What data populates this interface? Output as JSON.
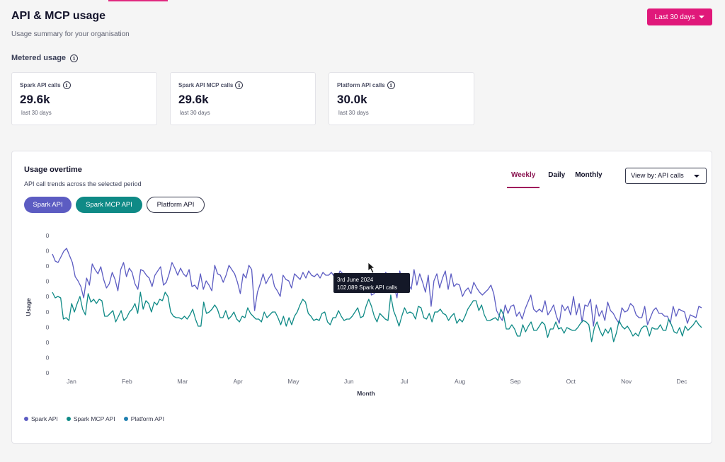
{
  "header": {
    "title": "API & MCP usage",
    "subtitle": "Usage summary for your organisation",
    "period_label": "Last 30 days"
  },
  "metered": {
    "title": "Metered usage",
    "cards": [
      {
        "label": "Spark API calls",
        "value": "29.6k",
        "sub": "last 30 days"
      },
      {
        "label": "Spark API MCP calls",
        "value": "29.6k",
        "sub": "last 30 days"
      },
      {
        "label": "Platform API calls",
        "value": "30.0k",
        "sub": "last 30 days"
      }
    ]
  },
  "usage": {
    "title": "Usage overtime",
    "subtitle": "API call trends across the selected period",
    "tabs": [
      "Weekly",
      "Daily",
      "Monthly"
    ],
    "active_tab": "Weekly",
    "view_by": "View by: API calls",
    "filters": [
      "Spark API",
      "Spark MCP API",
      "Platform API"
    ],
    "tooltip": {
      "date": "3rd June 2024",
      "text": "102,089 Spark API calls"
    }
  },
  "colors": {
    "spark": "#5c5cc2",
    "mcp": "#0f8a86",
    "platform": "#1f7fb0",
    "accent": "#e0187a"
  },
  "chart_data": {
    "type": "line",
    "xlabel": "Month",
    "ylabel": "Usage",
    "x_tick_labels": [
      "Jan",
      "Feb",
      "Mar",
      "Apr",
      "May",
      "Jun",
      "Jul",
      "Aug",
      "Sep",
      "Oct",
      "Nov",
      "Dec"
    ],
    "y_tick_labels": [
      "0",
      "0",
      "0",
      "0",
      "0",
      "0",
      "0",
      "0",
      "0",
      "0"
    ],
    "grid": false,
    "legend": "bottom-left",
    "series": [
      {
        "name": "Spark API",
        "values": [
          0.84,
          0.79,
          0.78,
          0.82,
          0.86,
          0.88,
          0.83,
          0.78,
          0.68,
          0.65,
          0.61,
          0.53,
          0.67,
          0.62,
          0.77,
          0.73,
          0.7,
          0.75,
          0.66,
          0.6,
          0.63,
          0.71,
          0.66,
          0.58,
          0.73,
          0.78,
          0.68,
          0.74,
          0.71,
          0.63,
          0.59,
          0.73,
          0.72,
          0.69,
          0.67,
          0.61,
          0.69,
          0.72,
          0.75,
          0.62,
          0.64,
          0.7,
          0.78,
          0.74,
          0.69,
          0.74,
          0.7,
          0.68,
          0.73,
          0.61,
          0.62,
          0.59,
          0.7,
          0.59,
          0.65,
          0.62,
          0.58,
          0.76,
          0.7,
          0.69,
          0.64,
          0.69,
          0.76,
          0.73,
          0.7,
          0.64,
          0.56,
          0.7,
          0.67,
          0.76,
          0.73,
          0.44,
          0.57,
          0.63,
          0.7,
          0.63,
          0.67,
          0.7,
          0.61,
          0.58,
          0.54,
          0.69,
          0.66,
          0.65,
          0.6,
          0.7,
          0.68,
          0.66,
          0.71,
          0.67,
          0.72,
          0.69,
          0.68,
          0.7,
          0.67,
          0.71,
          0.69,
          0.69,
          0.71,
          0.68,
          0.67,
          0.72,
          0.7,
          0.64,
          0.66,
          0.6,
          0.63,
          0.67,
          0.6,
          0.62,
          0.65,
          0.69,
          0.55,
          0.56,
          0.64,
          0.69,
          0.65,
          0.71,
          0.69,
          0.66,
          0.61,
          0.53,
          0.72,
          0.64,
          0.68,
          0.63,
          0.59,
          0.73,
          0.62,
          0.7,
          0.64,
          0.57,
          0.69,
          0.47,
          0.65,
          0.7,
          0.6,
          0.67,
          0.72,
          0.59,
          0.7,
          0.61,
          0.63,
          0.62,
          0.54,
          0.58,
          0.6,
          0.56,
          0.64,
          0.6,
          0.57,
          0.55,
          0.57,
          0.59,
          0.62,
          0.56,
          0.44,
          0.4,
          0.37,
          0.48,
          0.42,
          0.47,
          0.48,
          0.4,
          0.43,
          0.38,
          0.45,
          0.5,
          0.55,
          0.45,
          0.43,
          0.45,
          0.43,
          0.51,
          0.41,
          0.44,
          0.48,
          0.4,
          0.35,
          0.48,
          0.44,
          0.47,
          0.41,
          0.54,
          0.41,
          0.49,
          0.36,
          0.48,
          0.47,
          0.52,
          0.33,
          0.48,
          0.4,
          0.44,
          0.37,
          0.5,
          0.44,
          0.42,
          0.38,
          0.35,
          0.46,
          0.43,
          0.44,
          0.49,
          0.47,
          0.41,
          0.39,
          0.39,
          0.47,
          0.34,
          0.39,
          0.44,
          0.46,
          0.42,
          0.42,
          0.4,
          0.4,
          0.35,
          0.47,
          0.4,
          0.45,
          0.44,
          0.43,
          0.35,
          0.41,
          0.4,
          0.39,
          0.47,
          0.46
        ]
      },
      {
        "name": "Spark MCP API",
        "values": [
          0.57,
          0.53,
          0.54,
          0.53,
          0.38,
          0.39,
          0.37,
          0.49,
          0.43,
          0.49,
          0.54,
          0.45,
          0.41,
          0.56,
          0.5,
          0.52,
          0.49,
          0.52,
          0.51,
          0.4,
          0.4,
          0.42,
          0.44,
          0.36,
          0.4,
          0.44,
          0.37,
          0.39,
          0.43,
          0.45,
          0.49,
          0.42,
          0.57,
          0.45,
          0.51,
          0.49,
          0.43,
          0.5,
          0.48,
          0.52,
          0.51,
          0.57,
          0.54,
          0.43,
          0.4,
          0.39,
          0.39,
          0.38,
          0.4,
          0.38,
          0.41,
          0.45,
          0.38,
          0.33,
          0.33,
          0.5,
          0.42,
          0.43,
          0.45,
          0.48,
          0.45,
          0.39,
          0.39,
          0.44,
          0.38,
          0.4,
          0.43,
          0.38,
          0.36,
          0.4,
          0.39,
          0.46,
          0.42,
          0.4,
          0.38,
          0.38,
          0.36,
          0.43,
          0.39,
          0.41,
          0.43,
          0.43,
          0.39,
          0.34,
          0.4,
          0.33,
          0.39,
          0.34,
          0.4,
          0.43,
          0.48,
          0.52,
          0.5,
          0.42,
          0.4,
          0.37,
          0.38,
          0.37,
          0.42,
          0.43,
          0.36,
          0.34,
          0.39,
          0.39,
          0.44,
          0.4,
          0.37,
          0.38,
          0.38,
          0.4,
          0.43,
          0.46,
          0.39,
          0.4,
          0.47,
          0.52,
          0.47,
          0.4,
          0.36,
          0.42,
          0.4,
          0.38,
          0.37,
          0.55,
          0.44,
          0.39,
          0.33,
          0.4,
          0.46,
          0.42,
          0.43,
          0.42,
          0.38,
          0.47,
          0.46,
          0.39,
          0.38,
          0.42,
          0.36,
          0.43,
          0.43,
          0.45,
          0.42,
          0.41,
          0.37,
          0.4,
          0.42,
          0.35,
          0.38,
          0.36,
          0.4,
          0.45,
          0.48,
          0.51,
          0.51,
          0.44,
          0.48,
          0.41,
          0.37,
          0.37,
          0.38,
          0.39,
          0.37,
          0.45,
          0.41,
          0.31,
          0.31,
          0.34,
          0.31,
          0.26,
          0.26,
          0.34,
          0.29,
          0.33,
          0.36,
          0.3,
          0.3,
          0.33,
          0.36,
          0.34,
          0.25,
          0.31,
          0.31,
          0.36,
          0.31,
          0.32,
          0.28,
          0.32,
          0.31,
          0.3,
          0.3,
          0.32,
          0.35,
          0.37,
          0.36,
          0.34,
          0.22,
          0.32,
          0.36,
          0.3,
          0.26,
          0.31,
          0.28,
          0.32,
          0.22,
          0.28,
          0.37,
          0.33,
          0.31,
          0.33,
          0.3,
          0.26,
          0.28,
          0.26,
          0.31,
          0.33,
          0.33,
          0.26,
          0.32,
          0.31,
          0.31,
          0.34,
          0.3,
          0.3,
          0.38,
          0.34,
          0.29,
          0.28,
          0.32,
          0.26,
          0.33,
          0.3,
          0.32,
          0.34,
          0.37,
          0.34,
          0.32
        ]
      },
      {
        "name": "Platform API",
        "values": []
      }
    ]
  }
}
